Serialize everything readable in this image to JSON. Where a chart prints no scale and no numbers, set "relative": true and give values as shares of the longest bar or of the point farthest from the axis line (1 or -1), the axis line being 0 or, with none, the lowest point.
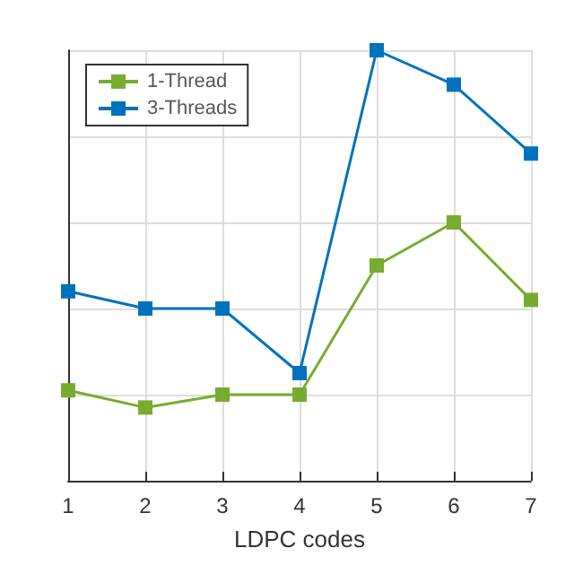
{
  "chart_data": {
    "type": "line",
    "xlabel": "LDPC codes",
    "categories": [
      "1",
      "2",
      "3",
      "4",
      "5",
      "6",
      "7"
    ],
    "relative": true,
    "grid": true,
    "legend": "top left",
    "marker": "square",
    "line_style": "solid",
    "series": [
      {
        "name": "1-Thread",
        "color": "#77ac30",
        "values": [
          0.21,
          0.17,
          0.2,
          0.2,
          0.5,
          0.6,
          0.42
        ]
      },
      {
        "name": "3-Threads",
        "color": "#0072bd",
        "values": [
          0.44,
          0.4,
          0.4,
          0.25,
          1,
          0.92,
          0.76
        ]
      }
    ]
  }
}
